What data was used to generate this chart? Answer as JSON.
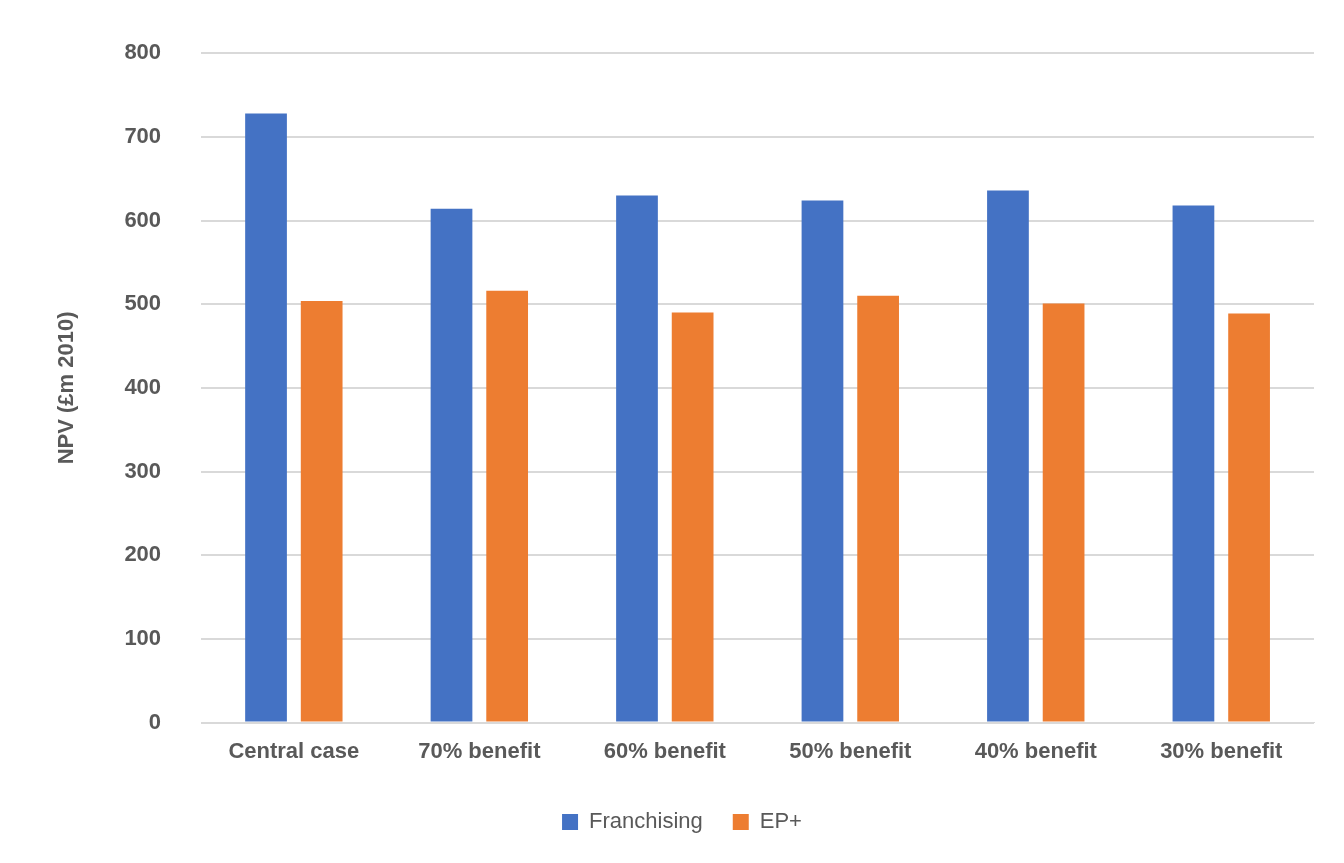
{
  "chart_data": {
    "type": "bar",
    "ylabel": "NPV (£m 2010)",
    "categories": [
      "Central case",
      "70% benefit",
      "60% benefit",
      "50% benefit",
      "40% benefit",
      "30% benefit"
    ],
    "series": [
      {
        "name": "Franchising",
        "color": "#4472c4",
        "values": [
          728,
          614,
          630,
          624,
          636,
          618
        ]
      },
      {
        "name": "EP+",
        "color": "#ed7d31",
        "values": [
          504,
          516,
          490,
          510,
          501,
          489
        ]
      }
    ],
    "ylim": [
      0,
      800
    ],
    "yticks": [
      0,
      100,
      200,
      300,
      400,
      500,
      600,
      700,
      800
    ],
    "grid": "y",
    "legend": "bottom"
  }
}
